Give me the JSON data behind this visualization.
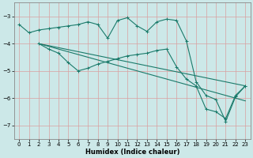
{
  "xlabel": "Humidex (Indice chaleur)",
  "bg_color": "#cce8e8",
  "line_color": "#1a7a6a",
  "grid_color": "#d9a0a0",
  "xlim": [
    -0.5,
    23.5
  ],
  "ylim": [
    -7.5,
    -2.5
  ],
  "yticks": [
    -7,
    -6,
    -5,
    -4,
    -3
  ],
  "xticks": [
    0,
    1,
    2,
    3,
    4,
    5,
    6,
    7,
    8,
    9,
    10,
    11,
    12,
    13,
    14,
    15,
    16,
    17,
    18,
    19,
    20,
    21,
    22,
    23
  ],
  "series": [
    {
      "x": [
        0,
        1,
        2,
        3,
        4,
        5,
        6,
        7,
        8,
        9,
        10,
        11,
        12,
        13,
        14,
        15,
        16,
        17,
        18,
        19,
        20,
        21,
        22,
        23
      ],
      "y": [
        -3.3,
        -3.6,
        -3.5,
        -3.45,
        -3.4,
        -3.35,
        -3.3,
        -3.2,
        -3.3,
        -3.8,
        -3.15,
        -3.05,
        -3.35,
        -3.55,
        -3.2,
        -3.1,
        -3.15,
        -3.9,
        -5.4,
        -5.9,
        -6.05,
        -6.85,
        -5.95,
        -5.55
      ]
    },
    {
      "x": [
        2,
        23
      ],
      "y": [
        -4.0,
        -5.55
      ]
    },
    {
      "x": [
        2,
        23
      ],
      "y": [
        -4.0,
        -6.1
      ]
    },
    {
      "x": [
        2,
        3,
        4,
        5,
        6,
        7,
        8,
        9,
        10,
        11,
        12,
        13,
        14,
        15,
        16,
        17,
        18,
        19,
        20,
        21,
        22,
        23
      ],
      "y": [
        -4.0,
        -4.2,
        -4.35,
        -4.7,
        -5.0,
        -4.9,
        -4.75,
        -4.65,
        -4.55,
        -4.45,
        -4.4,
        -4.35,
        -4.25,
        -4.2,
        -4.85,
        -5.3,
        -5.55,
        -6.4,
        -6.5,
        -6.75,
        -5.9,
        -5.55
      ]
    }
  ]
}
